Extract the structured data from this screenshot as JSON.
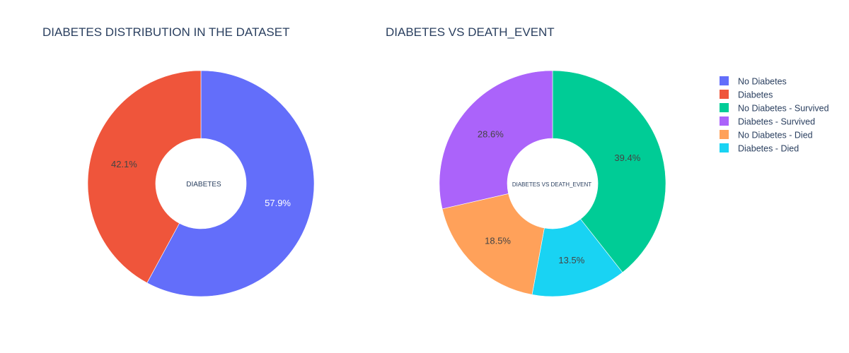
{
  "chart_data": [
    {
      "type": "pie",
      "hole": true,
      "title": "DIABETES DISTRIBUTION IN THE DATASET",
      "center_text": "DIABETES",
      "slices": [
        {
          "label": "No Diabetes",
          "value": 57.9,
          "text": "57.9%",
          "color": "#636efa",
          "text_color": "#ffffff"
        },
        {
          "label": "Diabetes",
          "value": 42.1,
          "text": "42.1%",
          "color": "#ef553b",
          "text_color": "#444444"
        }
      ]
    },
    {
      "type": "pie",
      "hole": true,
      "title": "DIABETES VS DEATH_EVENT",
      "center_text": "DIABETES VS DEATH_EVENT",
      "slices": [
        {
          "label": "No Diabetes - Survived",
          "value": 39.4,
          "text": "39.4%",
          "color": "#00cc96",
          "text_color": "#444444"
        },
        {
          "label": "Diabetes  - Died",
          "value": 13.5,
          "text": "13.5%",
          "color": "#19d3f3",
          "text_color": "#444444"
        },
        {
          "label": "No Diabetes -  Died",
          "value": 18.5,
          "text": "18.5%",
          "color": "#ffa15a",
          "text_color": "#444444"
        },
        {
          "label": "Diabetes - Survived",
          "value": 28.6,
          "text": "28.6%",
          "color": "#ab63fa",
          "text_color": "#444444"
        }
      ]
    }
  ],
  "legend": {
    "placement": "right",
    "items": [
      {
        "label": "No Diabetes",
        "color": "#636efa"
      },
      {
        "label": "Diabetes",
        "color": "#ef553b"
      },
      {
        "label": "No Diabetes - Survived",
        "color": "#00cc96"
      },
      {
        "label": "Diabetes - Survived",
        "color": "#ab63fa"
      },
      {
        "label": "No Diabetes -  Died",
        "color": "#ffa15a"
      },
      {
        "label": "Diabetes  - Died",
        "color": "#19d3f3"
      }
    ]
  }
}
